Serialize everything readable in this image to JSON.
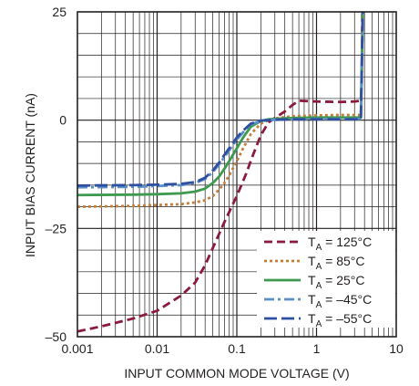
{
  "chart_data": {
    "type": "line",
    "xscale": "log",
    "xlim": [
      0.001,
      10
    ],
    "ylim": [
      -50,
      25
    ],
    "xlabel": "INPUT COMMON MODE VOLTAGE (V)",
    "ylabel": "INPUT BIAS CURRENT (nA)",
    "xticks": [
      0.001,
      0.01,
      0.1,
      1,
      10
    ],
    "xtick_labels": [
      "0.001",
      "0.01",
      "0.1",
      "1",
      "10"
    ],
    "yticks": [
      25,
      0,
      -25,
      -50
    ],
    "ytick_labels": [
      "25",
      "0",
      "–25",
      "–50"
    ],
    "grid": true,
    "legend_position": "bottom-right",
    "series": [
      {
        "name": "TA = 125°C",
        "legend_main": "T",
        "legend_sub": "A",
        "legend_rest": " = 125°C",
        "color": "#8b1a3c",
        "dash": "dashed",
        "x": [
          0.001,
          0.002,
          0.005,
          0.01,
          0.02,
          0.03,
          0.04,
          0.05,
          0.07,
          0.1,
          0.13,
          0.16,
          0.2,
          0.25,
          0.3,
          0.4,
          0.5,
          0.6,
          1,
          2,
          3,
          3.6,
          3.7,
          3.72,
          3.75,
          3.8
        ],
        "y": [
          -48.8,
          -47.6,
          -45.8,
          -44,
          -40.5,
          -37.5,
          -33.5,
          -29.5,
          -23.5,
          -17.5,
          -12.5,
          -8,
          -3.5,
          -0.5,
          0.5,
          2,
          3.5,
          4.5,
          4.3,
          4.2,
          4.3,
          4.5,
          10,
          18,
          25,
          25
        ]
      },
      {
        "name": "TA = 85°C",
        "legend_main": "T",
        "legend_sub": "A",
        "legend_rest": " = 85°C",
        "color": "#c4803a",
        "dash": "dotted",
        "x": [
          0.001,
          0.005,
          0.01,
          0.02,
          0.03,
          0.04,
          0.05,
          0.06,
          0.07,
          0.08,
          0.1,
          0.12,
          0.15,
          0.2,
          0.25,
          0.3,
          0.4,
          0.5,
          1,
          2,
          3.6,
          3.8
        ],
        "y": [
          -20,
          -19.8,
          -19.6,
          -19.4,
          -19,
          -18.5,
          -17.5,
          -16,
          -14.5,
          -12.8,
          -9.5,
          -6.5,
          -3.2,
          -0.8,
          0,
          0.4,
          0.7,
          0.9,
          1.1,
          1.2,
          1.2,
          25
        ]
      },
      {
        "name": "TA = 25°C",
        "legend_main": "T",
        "legend_sub": "A",
        "legend_rest": " = 25°C",
        "color": "#3d9a4f",
        "dash": "solid",
        "x": [
          0.001,
          0.005,
          0.01,
          0.02,
          0.03,
          0.04,
          0.05,
          0.06,
          0.07,
          0.08,
          0.1,
          0.12,
          0.15,
          0.2,
          0.25,
          0.3,
          0.5,
          1,
          2,
          3.6,
          3.8
        ],
        "y": [
          -17.3,
          -17.2,
          -17.1,
          -16.9,
          -16.5,
          -15.8,
          -14.5,
          -13,
          -11.2,
          -9.5,
          -6.5,
          -4,
          -1.5,
          -0.2,
          0.2,
          0.3,
          0.5,
          0.6,
          0.6,
          0.6,
          25
        ]
      },
      {
        "name": "TA = –45°C",
        "legend_main": "T",
        "legend_sub": "A",
        "legend_rest": " = –45°C",
        "color": "#5b8fc9",
        "dash": "dashdot",
        "x": [
          0.001,
          0.005,
          0.01,
          0.02,
          0.03,
          0.04,
          0.05,
          0.06,
          0.07,
          0.08,
          0.1,
          0.12,
          0.15,
          0.2,
          0.25,
          0.3,
          0.5,
          1,
          2,
          3.6,
          3.8
        ],
        "y": [
          -15.5,
          -15.4,
          -15.2,
          -15,
          -14.5,
          -13.6,
          -12,
          -10.2,
          -8.5,
          -7,
          -4.5,
          -2.8,
          -1,
          -0.2,
          0,
          0.1,
          0.2,
          0.3,
          0.3,
          0.3,
          25
        ]
      },
      {
        "name": "TA = –55°C",
        "legend_main": "T",
        "legend_sub": "A",
        "legend_rest": " = –55°C",
        "color": "#2f4fa0",
        "dash": "longdash",
        "x": [
          0.001,
          0.005,
          0.01,
          0.02,
          0.03,
          0.04,
          0.05,
          0.06,
          0.07,
          0.08,
          0.1,
          0.12,
          0.15,
          0.2,
          0.25,
          0.3,
          0.5,
          1,
          2,
          3.6,
          3.8
        ],
        "y": [
          -15.1,
          -15,
          -14.9,
          -14.7,
          -14.3,
          -13.3,
          -11.6,
          -9.8,
          -8,
          -6.5,
          -4,
          -2.4,
          -0.8,
          -0.1,
          0,
          0.1,
          0.2,
          0.2,
          0.2,
          0.2,
          25
        ]
      }
    ]
  }
}
